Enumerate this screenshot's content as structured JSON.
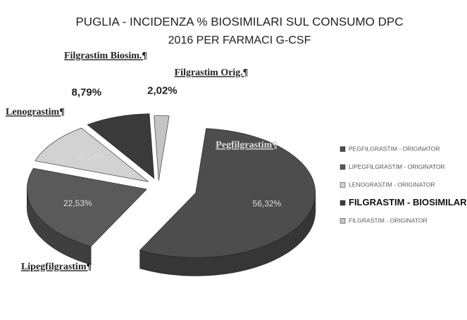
{
  "chart_data": {
    "type": "pie",
    "title": "PUGLIA - INCIDENZA % BIOSIMILARI  SUL CONSUMO DPC",
    "subtitle": "2016 PER FARMACI G-CSF",
    "categories": [
      "PEGFILGRASTIM - ORIGINATOR",
      "LIPEGFILGRASTIM - ORIGINATOR",
      "LENOGRASTIM - ORIGINATOR",
      "FILGRASTIM - BIOSIMILARE",
      "FILGRASTIM - ORIGINATOR"
    ],
    "values": [
      56.32,
      22.53,
      10.34,
      8.79,
      2.02
    ],
    "value_labels": [
      "56,32%",
      "22,53%",
      "10,34%",
      "8,79%",
      "2,02%"
    ],
    "slice_labels": [
      "Pegfilgrastim¶",
      "Lipegfilgrastim¶",
      "Lenograstim¶",
      "Filgrastim Biosim.¶",
      "Filgrastim Orig.¶"
    ],
    "colors": [
      "#4d4d4d",
      "#5a5a5a",
      "#d2d2d2",
      "#3a3a3a",
      "#c4c4c4"
    ],
    "legend": "right"
  }
}
